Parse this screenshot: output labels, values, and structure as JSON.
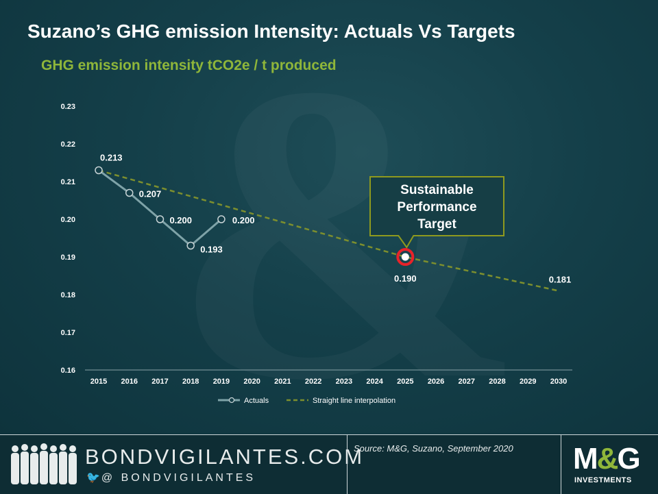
{
  "title": "Suzano’s GHG emission Intensity: Actuals Vs Targets",
  "subtitle": "GHG emission intensity tCO2e / t produced",
  "chart_data": {
    "type": "line",
    "x": [
      2015,
      2016,
      2017,
      2018,
      2019,
      2020,
      2021,
      2022,
      2023,
      2024,
      2025,
      2026,
      2027,
      2028,
      2029,
      2030
    ],
    "x_tick_labels": [
      "2015",
      "2016",
      "2017",
      "2018",
      "2019",
      "2020",
      "2021",
      "2022",
      "2023",
      "2024",
      "2025",
      "2026",
      "2027",
      "2028",
      "2029",
      "2030"
    ],
    "ylim": [
      0.16,
      0.23
    ],
    "y_ticks": [
      0.16,
      0.17,
      0.18,
      0.19,
      0.2,
      0.21,
      0.22,
      0.23
    ],
    "y_tick_labels": [
      "0.16",
      "0.17",
      "0.18",
      "0.19",
      "0.20",
      "0.21",
      "0.22",
      "0.23"
    ],
    "series": [
      {
        "name": "Actuals",
        "style": "solid",
        "color": "#7fa3a8",
        "points": [
          {
            "x": 2015,
            "y": 0.213,
            "label": "0.213"
          },
          {
            "x": 2016,
            "y": 0.207,
            "label": "0.207"
          },
          {
            "x": 2017,
            "y": 0.2,
            "label": "0.200"
          },
          {
            "x": 2018,
            "y": 0.193,
            "label": "0.193"
          },
          {
            "x": 2019,
            "y": 0.2,
            "label": "0.200"
          }
        ]
      },
      {
        "name": "Straight line interpolation",
        "style": "dashed",
        "color": "#7d8f2e",
        "points": [
          {
            "x": 2015,
            "y": 0.213
          },
          {
            "x": 2025,
            "y": 0.19,
            "label": "0.190"
          },
          {
            "x": 2030,
            "y": 0.181,
            "label": "0.181"
          }
        ]
      }
    ],
    "annotation": {
      "text_lines": [
        "Sustainable",
        "Performance",
        "Target"
      ],
      "x": 2025,
      "y": 0.19,
      "marker_color": "#e8232a",
      "border_color": "#8f9a1e"
    },
    "legend": {
      "placement": "bottom-center"
    },
    "grid": false
  },
  "footer": {
    "brand": "BONDVIGILANTES.COM",
    "handle_icon": "twitter-bird-icon",
    "handle": "@ BONDVIGILANTES",
    "source": "Source: M&G, Suzano, September 2020",
    "logo_main_left": "M",
    "logo_amp": "&",
    "logo_main_right": "G",
    "logo_sub": "INVESTMENTS"
  },
  "colors": {
    "background": "#143f49",
    "accent_green": "#8fb63a",
    "footer": "#0e2d34"
  }
}
